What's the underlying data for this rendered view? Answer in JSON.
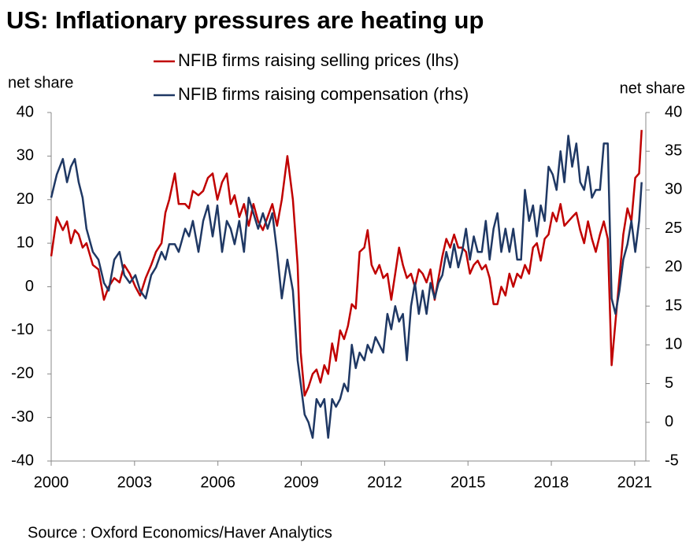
{
  "chart_data": {
    "type": "line",
    "title": "US: Inflationary pressures are heating up",
    "ylabel": "net share",
    "y2label": "net share",
    "source": "Source : Oxford Economics/Haver Analytics",
    "xlim": [
      2000,
      2021.4
    ],
    "xticks": [
      2000,
      2003,
      2006,
      2009,
      2012,
      2015,
      2018,
      2021
    ],
    "ylim": [
      -40,
      40
    ],
    "yticks": [
      -40,
      -30,
      -20,
      -10,
      0,
      10,
      20,
      30,
      40
    ],
    "y2lim": [
      -5,
      40
    ],
    "y2ticks": [
      -5,
      0,
      5,
      10,
      15,
      20,
      25,
      30,
      35,
      40
    ],
    "legend": "top",
    "x": [
      2000.0,
      2000.2,
      2000.42,
      2000.57,
      2000.71,
      2000.85,
      2000.99,
      2001.13,
      2001.27,
      2001.5,
      2001.7,
      2001.9,
      2002.07,
      2002.27,
      2002.46,
      2002.63,
      2002.83,
      2003.03,
      2003.2,
      2003.4,
      2003.6,
      2003.77,
      2003.97,
      2004.11,
      2004.25,
      2004.45,
      2004.59,
      2004.82,
      2004.96,
      2005.1,
      2005.3,
      2005.47,
      2005.64,
      2005.81,
      2005.98,
      2006.15,
      2006.32,
      2006.46,
      2006.6,
      2006.77,
      2006.94,
      2007.11,
      2007.28,
      2007.45,
      2007.62,
      2007.79,
      2007.96,
      2008.13,
      2008.3,
      2008.5,
      2008.7,
      2008.87,
      2008.98,
      2009.12,
      2009.26,
      2009.41,
      2009.55,
      2009.69,
      2009.83,
      2009.97,
      2010.11,
      2010.25,
      2010.4,
      2010.54,
      2010.68,
      2010.82,
      2010.96,
      2011.1,
      2011.27,
      2011.39,
      2011.53,
      2011.67,
      2011.81,
      2011.95,
      2012.1,
      2012.24,
      2012.38,
      2012.52,
      2012.66,
      2012.8,
      2012.95,
      2013.09,
      2013.23,
      2013.37,
      2013.51,
      2013.65,
      2013.8,
      2013.94,
      2014.08,
      2014.22,
      2014.36,
      2014.5,
      2014.65,
      2014.79,
      2014.93,
      2015.07,
      2015.21,
      2015.35,
      2015.5,
      2015.64,
      2015.78,
      2015.92,
      2016.06,
      2016.2,
      2016.35,
      2016.49,
      2016.63,
      2016.77,
      2016.91,
      2017.05,
      2017.2,
      2017.34,
      2017.48,
      2017.62,
      2017.76,
      2017.9,
      2018.05,
      2018.19,
      2018.33,
      2018.47,
      2018.61,
      2018.75,
      2018.9,
      2019.04,
      2019.18,
      2019.32,
      2019.46,
      2019.6,
      2019.75,
      2019.89,
      2020.03,
      2020.17,
      2020.31,
      2020.45,
      2020.59,
      2020.74,
      2020.88,
      2021.02,
      2021.16,
      2021.25
    ],
    "series": [
      {
        "name": "NFIB firms raising selling prices (lhs)",
        "color": "#c00000",
        "axis": "y",
        "values": [
          7,
          16,
          13,
          15,
          10,
          13,
          12,
          9,
          10,
          5,
          4,
          -3,
          0,
          2,
          1,
          5,
          3,
          0,
          -2,
          2,
          5,
          8,
          10,
          17,
          20,
          26,
          19,
          19,
          18,
          22,
          21,
          22,
          25,
          26,
          20,
          24,
          26,
          19,
          21,
          16,
          19,
          14,
          19,
          15,
          13,
          16,
          19,
          14,
          20,
          30,
          20,
          5,
          -15,
          -25,
          -23,
          -20,
          -19,
          -22,
          -18,
          -20,
          -13,
          -17,
          -10,
          -12,
          -9,
          -4,
          -5,
          8,
          9,
          13,
          5,
          3,
          5,
          2,
          3,
          -3,
          3,
          9,
          5,
          2,
          3,
          0,
          4,
          3,
          1,
          4,
          -3,
          2,
          7,
          11,
          9,
          12,
          9,
          9,
          8,
          3,
          5,
          6,
          4,
          5,
          2,
          -4,
          -4,
          0,
          -2,
          3,
          0,
          3,
          2,
          5,
          3,
          9,
          10,
          6,
          11,
          12,
          17,
          15,
          19,
          14,
          15,
          16,
          17,
          13,
          10,
          15,
          11,
          8,
          12,
          15,
          11,
          -18,
          -8,
          2,
          12,
          18,
          15,
          25,
          26,
          36
        ]
      },
      {
        "name": "NFIB firms raising compensation (rhs)",
        "color": "#1f3864",
        "axis": "y2",
        "values": [
          29,
          32,
          34,
          31,
          33,
          34,
          31,
          29,
          25,
          22,
          21,
          18,
          17,
          21,
          22,
          19,
          18,
          19,
          17,
          16,
          19,
          20,
          22,
          21,
          23,
          23,
          22,
          25,
          24,
          26,
          22,
          26,
          28,
          24,
          28,
          22,
          26,
          25,
          23,
          26,
          22,
          29,
          27,
          25,
          27,
          25,
          27,
          22,
          16,
          21,
          17,
          8,
          5,
          1,
          0,
          -2,
          3,
          2,
          3,
          -2,
          3,
          2,
          3,
          5,
          4,
          10,
          7,
          9,
          8,
          10,
          9,
          11,
          10,
          9,
          14,
          12,
          15,
          13,
          14,
          8,
          15,
          18,
          14,
          17,
          14,
          18,
          16,
          18,
          19,
          22,
          20,
          23,
          20,
          22,
          25,
          21,
          24,
          22,
          22,
          26,
          21,
          25,
          27,
          22,
          25,
          22,
          25,
          21,
          21,
          30,
          26,
          28,
          24,
          28,
          26,
          33,
          32,
          30,
          35,
          31,
          37,
          33,
          36,
          31,
          30,
          33,
          29,
          30,
          30,
          36,
          36,
          16,
          14,
          17,
          21,
          23,
          26,
          22,
          26,
          31
        ]
      }
    ]
  }
}
